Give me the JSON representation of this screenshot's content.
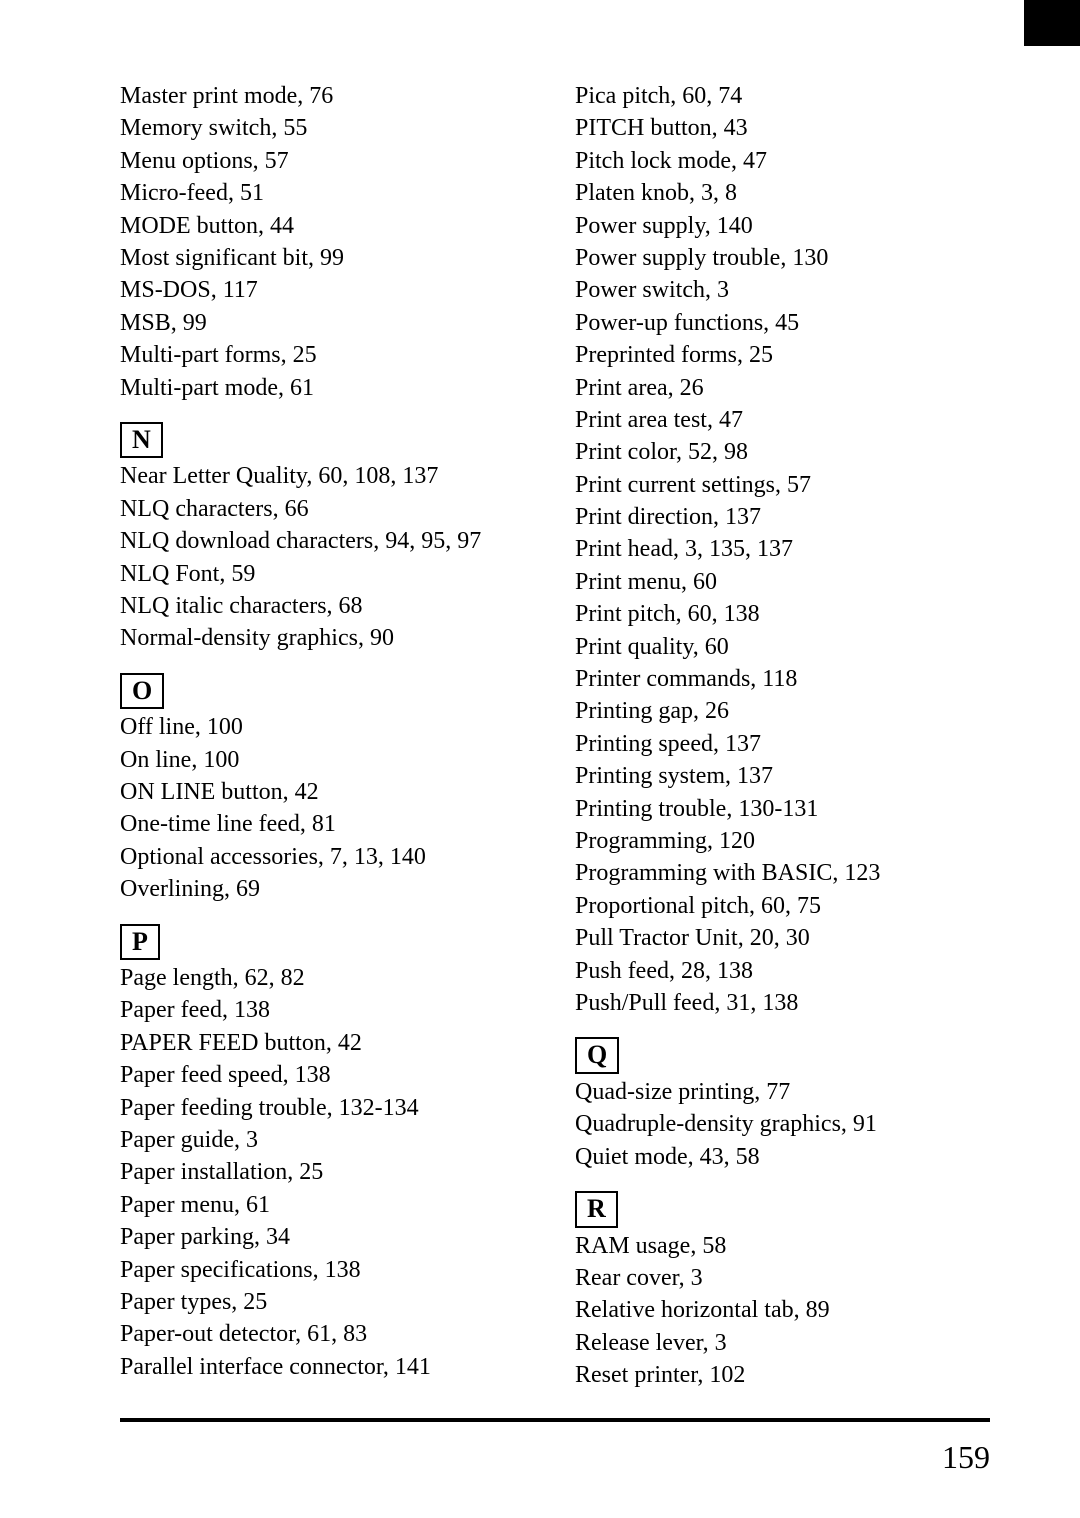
{
  "page_number": "159",
  "left": {
    "M_continued": [
      "Master print mode, 76",
      "Memory switch, 55",
      "Menu options, 57",
      "Micro-feed, 51",
      "MODE button, 44",
      "Most significant bit, 99",
      "MS-DOS, 117",
      "MSB, 99",
      "Multi-part forms, 25",
      "Multi-part mode, 61"
    ],
    "N_letter": "N",
    "N": [
      "Near Letter Quality, 60, 108, 137",
      "NLQ characters, 66",
      "NLQ download characters, 94, 95, 97",
      "NLQ Font, 59",
      "NLQ italic characters, 68",
      "Normal-density graphics, 90"
    ],
    "O_letter": "O",
    "O": [
      "Off line, 100",
      "On line, 100",
      "ON LINE button, 42",
      "One-time line feed, 81",
      "Optional accessories, 7, 13, 140",
      "Overlining, 69"
    ],
    "P_letter": "P",
    "P": [
      "Page length, 62, 82",
      "Paper feed, 138",
      "PAPER FEED button, 42",
      "Paper feed speed, 138",
      "Paper feeding trouble, 132-134",
      "Paper guide, 3",
      "Paper installation, 25",
      "Paper menu, 61",
      "Paper parking, 34",
      "Paper specifications, 138",
      "Paper types, 25",
      "Paper-out detector, 61, 83",
      "Parallel interface connector, 141"
    ]
  },
  "right": {
    "P_continued": [
      "Pica pitch, 60, 74",
      "PITCH button, 43",
      "Pitch lock mode, 47",
      "Platen knob, 3, 8",
      "Power supply, 140",
      "Power supply trouble, 130",
      "Power switch, 3",
      "Power-up functions, 45",
      "Preprinted forms, 25",
      "Print area, 26",
      "Print area test, 47",
      "Print color, 52, 98",
      "Print current settings, 57",
      "Print direction, 137",
      "Print head, 3, 135, 137",
      "Print menu, 60",
      "Print pitch, 60, 138",
      "Print quality, 60",
      "Printer commands, 118",
      "Printing gap, 26",
      "Printing speed, 137",
      "Printing system, 137",
      "Printing trouble, 130-131",
      "Programming, 120",
      "Programming with BASIC, 123",
      "Proportional pitch, 60, 75",
      "Pull Tractor Unit, 20, 30",
      "Push feed, 28, 138",
      "Push/Pull feed, 31, 138"
    ],
    "Q_letter": "Q",
    "Q": [
      "Quad-size printing, 77",
      "Quadruple-density graphics, 91",
      "Quiet mode, 43, 58"
    ],
    "R_letter": "R",
    "R": [
      "RAM usage, 58",
      "Rear cover, 3",
      "Relative horizontal tab, 89",
      "Release lever, 3",
      "Reset printer, 102"
    ]
  }
}
